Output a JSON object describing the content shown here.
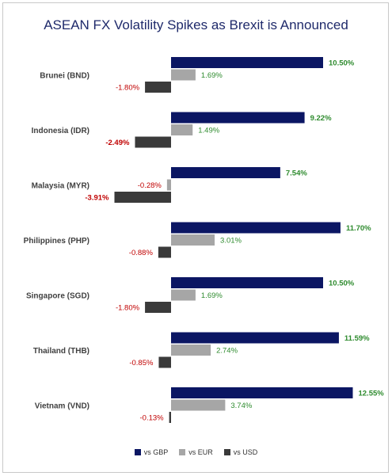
{
  "chart_data": {
    "type": "bar",
    "orientation": "horizontal",
    "title": "ASEAN FX Volatility Spikes as Brexit is Announced",
    "categories": [
      "Brunei (BND)",
      "Indonesia (IDR)",
      "Malaysia (MYR)",
      "Philippines (PHP)",
      "Singapore (SGD)",
      "Thailand (THB)",
      "Vietnam (VND)"
    ],
    "series": [
      {
        "name": "vs GBP",
        "color": "#0b1663",
        "values": [
          10.5,
          9.22,
          7.54,
          11.7,
          10.5,
          11.59,
          12.55
        ],
        "labels": [
          "10.50%",
          "9.22%",
          "7.54%",
          "11.70%",
          "10.50%",
          "11.59%",
          "12.55%"
        ]
      },
      {
        "name": "vs EUR",
        "color": "#a6a6a6",
        "values": [
          1.69,
          1.49,
          -0.28,
          3.01,
          1.69,
          2.74,
          3.74
        ],
        "labels": [
          "1.69%",
          "1.49%",
          "-0.28%",
          "3.01%",
          "1.69%",
          "2.74%",
          "3.74%"
        ]
      },
      {
        "name": "vs USD",
        "color": "#3a3a3a",
        "values": [
          -1.8,
          -2.49,
          -3.91,
          -0.88,
          -1.8,
          -0.85,
          -0.13
        ],
        "labels": [
          "-1.80%",
          "-2.49%",
          "-3.91%",
          "-0.88%",
          "-1.80%",
          "-0.85%",
          "-0.13%"
        ]
      }
    ],
    "positive_label_color": "#2e8b2e",
    "negative_label_color": "#c00000",
    "bold_labels": [
      [
        true,
        false,
        false
      ],
      [
        true,
        false,
        true
      ],
      [
        true,
        false,
        true
      ],
      [
        true,
        false,
        false
      ],
      [
        true,
        false,
        false
      ],
      [
        true,
        false,
        false
      ],
      [
        true,
        false,
        false
      ]
    ],
    "legend_position": "bottom",
    "grid": false
  }
}
